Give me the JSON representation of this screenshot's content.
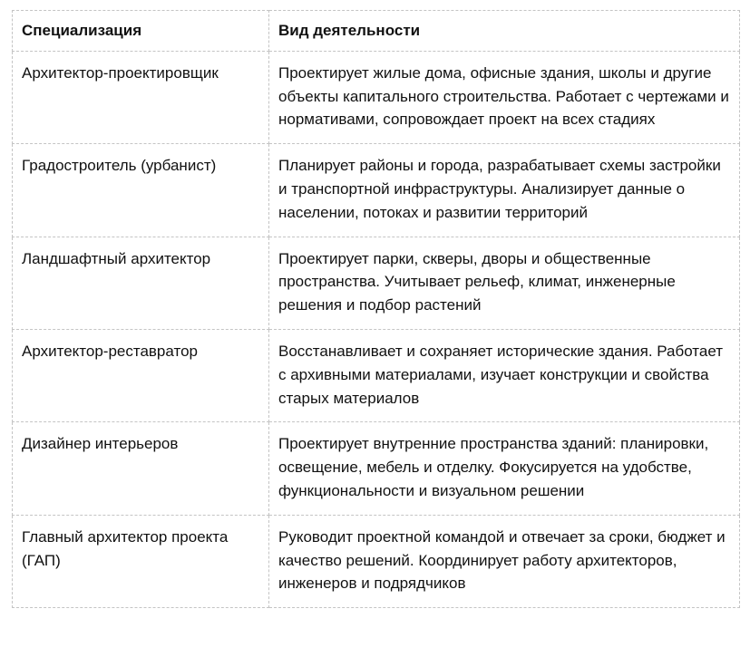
{
  "table": {
    "headers": [
      "Специализация",
      "Вид деятельности"
    ],
    "rows": [
      {
        "specialization": "Архитектор-проектировщик",
        "activity": "Проектирует жилые дома, офисные здания, школы и другие объекты капитального строительства. Работает с чертежами и нормативами, сопровождает проект на всех стадиях"
      },
      {
        "specialization": "Градостроитель (урбанист)",
        "activity": "Планирует районы и города, разрабатывает схемы застройки и транспортной инфраструктуры. Анализирует данные о населении, потоках и развитии территорий"
      },
      {
        "specialization": "Ландшафтный архитектор",
        "activity": "Проектирует парки, скверы, дворы и общественные пространства. Учитывает рельеф, климат, инженерные решения и подбор растений"
      },
      {
        "specialization": "Архитектор-реставратор",
        "activity": "Восстанавливает и сохраняет исторические здания. Работает с архивными материалами, изучает конструкции и свойства старых материалов"
      },
      {
        "specialization": "Дизайнер интерьеров",
        "activity": "Проектирует внутренние пространства зданий: планировки, освещение, мебель и отделку. Фокусируется на удобстве, функциональности и визуальном решении"
      },
      {
        "specialization": "Главный архитектор проекта (ГАП)",
        "activity": "Руководит проектной командой и отвечает за сроки, бюджет и качество решений. Координирует работу архитекторов, инженеров и подрядчиков"
      }
    ]
  }
}
